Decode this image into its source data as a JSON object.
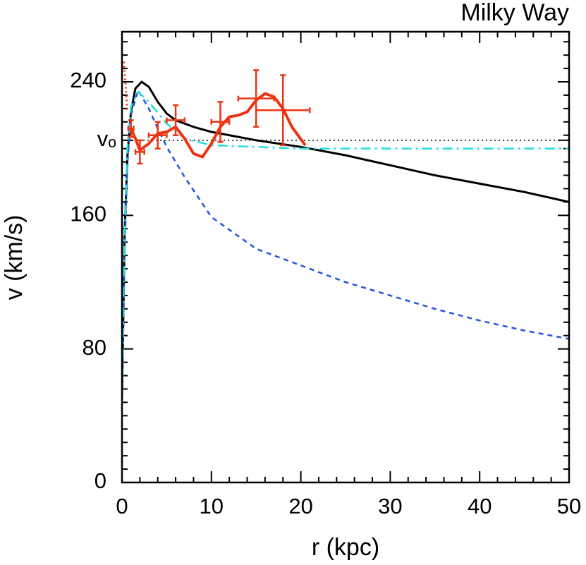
{
  "chart_data": {
    "type": "line",
    "title": "Milky Way",
    "x_label": "r (kpc)",
    "y_label": "v (km/s)",
    "xlim": [
      0,
      50
    ],
    "ylim": [
      0,
      270
    ],
    "xticks": [
      0,
      10,
      20,
      30,
      40,
      50
    ],
    "yticks": [
      0,
      80,
      160,
      240
    ],
    "xminorticks": [
      2,
      4,
      6,
      8,
      12,
      14,
      16,
      18,
      22,
      24,
      26,
      28,
      32,
      34,
      36,
      38,
      42,
      44,
      46,
      48
    ],
    "yminorticks": [
      8,
      16,
      24,
      32,
      40,
      48,
      56,
      64,
      72,
      88,
      96,
      104,
      112,
      120,
      128,
      136,
      144,
      152,
      168,
      176,
      184,
      192,
      200,
      208,
      216,
      224,
      232,
      248,
      256,
      264
    ],
    "hlines": [
      {
        "value": 205,
        "label": "vₒ",
        "style": "dotted",
        "color": "#000000"
      }
    ],
    "series": [
      {
        "style": "solid",
        "color": "#000000",
        "width": 3,
        "x": [
          0,
          0.3,
          0.6,
          1,
          1.5,
          2.2,
          3,
          4,
          5,
          6,
          8,
          10,
          15,
          20,
          25,
          30,
          35,
          40,
          45,
          50
        ],
        "values": [
          50,
          150,
          195,
          222,
          236,
          240,
          237,
          228,
          221,
          217,
          213,
          210,
          205,
          201,
          196,
          190,
          184,
          179,
          174,
          168
        ]
      },
      {
        "style": "dashed",
        "color": "#2255dd",
        "width": 2.5,
        "x": [
          0,
          0.3,
          0.6,
          1,
          1.8,
          3,
          4,
          5,
          7,
          10,
          15,
          20,
          25,
          30,
          35,
          40,
          45,
          50
        ],
        "values": [
          50,
          140,
          190,
          220,
          235,
          224,
          212,
          201,
          183,
          159,
          140,
          130,
          120,
          112,
          104,
          97,
          91,
          86
        ]
      },
      {
        "style": "dashdot",
        "color": "#22dddd",
        "width": 2.5,
        "x": [
          0,
          0.3,
          0.6,
          1,
          1.8,
          3,
          5,
          7,
          10,
          15,
          20,
          30,
          40,
          50
        ],
        "values": [
          50,
          150,
          200,
          225,
          234,
          228,
          215,
          206,
          202,
          201,
          200,
          200,
          200,
          200
        ]
      },
      {
        "style": "dotted",
        "color": "#ee3311",
        "width": 3,
        "x": [
          0.2,
          0.3,
          0.4,
          0.5,
          0.6
        ],
        "values": [
          252,
          245,
          238,
          230,
          222
        ]
      },
      {
        "style": "solid",
        "color": "#ee3311",
        "width": 4,
        "x": [
          1,
          1.5,
          2,
          3,
          4,
          5,
          6,
          7,
          8,
          9,
          10,
          11,
          12,
          13,
          14,
          15,
          16,
          17,
          18,
          19,
          20.5
        ],
        "values": [
          212,
          206,
          199,
          203,
          209,
          210,
          213,
          206,
          197,
          195,
          203,
          213,
          219,
          220,
          222,
          229,
          233,
          231,
          224,
          213,
          202
        ]
      },
      {
        "style": "errorbar",
        "color": "#ee3311",
        "width": 2.5,
        "x": [
          1,
          2,
          4,
          6,
          11,
          15,
          18
        ],
        "values": [
          212,
          198,
          208,
          217,
          216,
          230,
          223
        ],
        "yerr": [
          5,
          7,
          8,
          9,
          12,
          17,
          21
        ],
        "xerr": [
          0.3,
          0.5,
          1,
          1,
          1,
          2,
          3
        ]
      }
    ]
  }
}
